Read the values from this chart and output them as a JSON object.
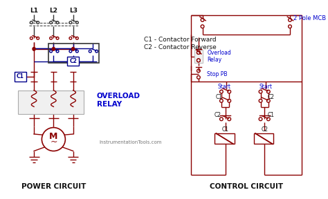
{
  "bg_color": "#ffffff",
  "power_label": "POWER CIRCUIT",
  "control_label": "CONTROL CIRCUIT",
  "legend_c1": "C1 - Contactor Forward",
  "legend_c2": "C2 - Contactor Reverse",
  "overload_label_power": "OVERLOAD\nRELAY",
  "instrumentation_text": "InstrumentationTools.com",
  "mcb_label": "2 Pole MCB",
  "overload_relay_label": "Overload\nRelay",
  "stop_pb_label": "Stop PB",
  "wire_red": "#8b0000",
  "wire_blue": "#00008b",
  "wire_dark": "#333333",
  "label_blue": "#0000cd",
  "label_black": "#111111",
  "label_gray": "#777777"
}
